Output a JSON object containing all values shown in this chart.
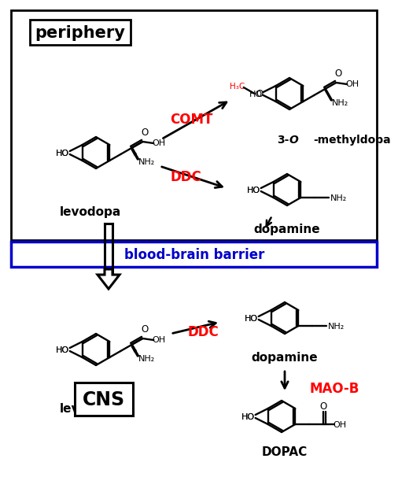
{
  "bg": "#ffffff",
  "periphery_label": "periphery",
  "cns_label": "CNS",
  "bbb_label": "blood-brain barrier",
  "comt": "COMT",
  "ddc": "DDC",
  "maob": "MAO-B",
  "levodopa": "levodopa",
  "methyldopa_name": "3-O-methyldopa",
  "methyldopa_italic_o": "O",
  "dopamine": "dopamine",
  "dopac": "DOPAC",
  "red": "#ff0000",
  "blue": "#0000cc",
  "black": "#000000",
  "bond_lw": 1.7,
  "ring_r": 20
}
